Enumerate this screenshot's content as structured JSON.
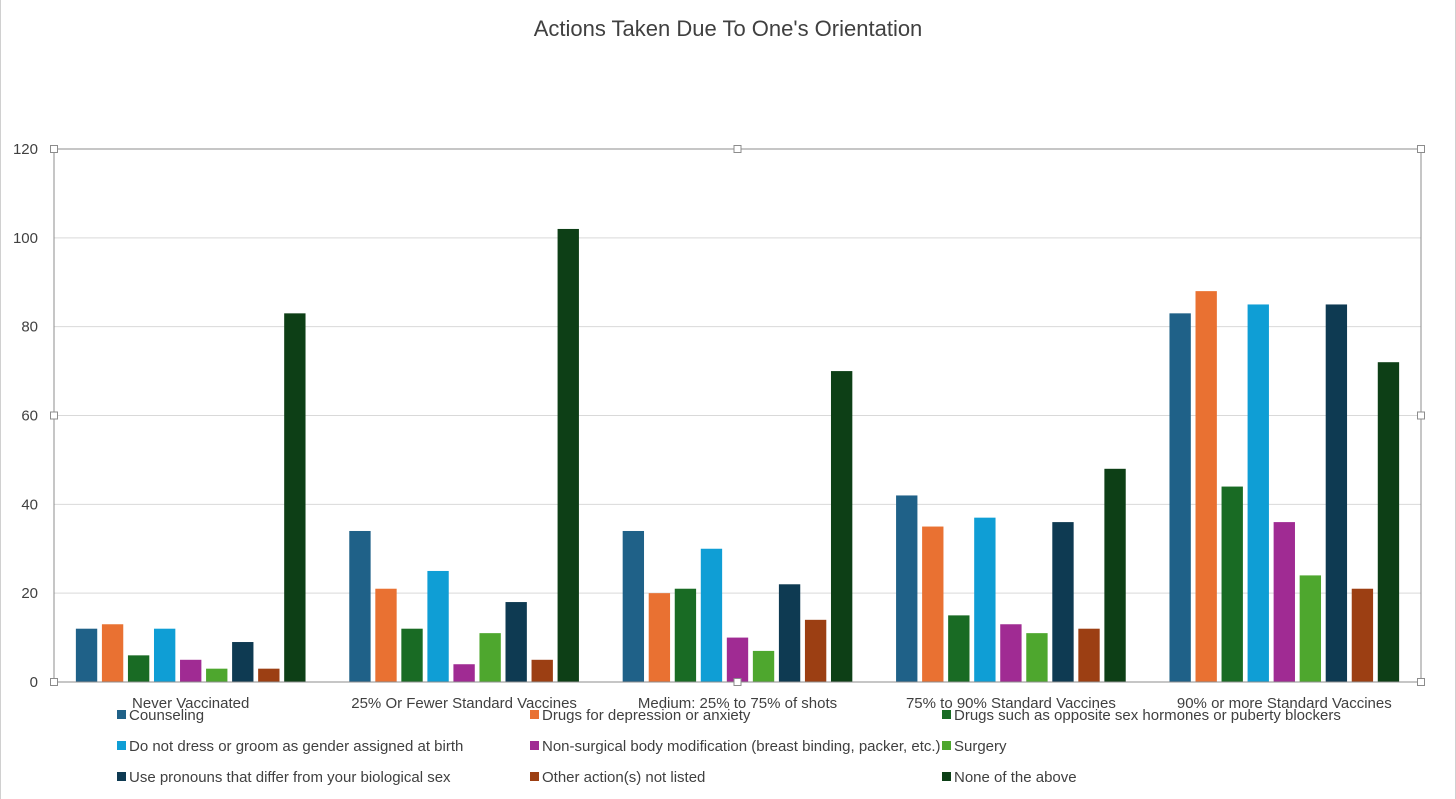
{
  "chart_data": {
    "type": "bar",
    "title": "Actions Taken Due To One's Orientation",
    "xlabel": "",
    "ylabel": "",
    "ylim": [
      0,
      120
    ],
    "yticks": [
      0,
      20,
      40,
      60,
      80,
      100,
      120
    ],
    "grid": true,
    "legend_position": "bottom",
    "categories": [
      "Never Vaccinated",
      "25% Or Fewer Standard Vaccines",
      "Medium: 25% to 75% of shots",
      "75% to 90% Standard Vaccines",
      "90% or more Standard Vaccines"
    ],
    "series": [
      {
        "name": "Counseling",
        "color": "#1f6188",
        "values": [
          12,
          34,
          34,
          42,
          83
        ]
      },
      {
        "name": "Drugs for depression or anxiety",
        "color": "#e97132",
        "values": [
          13,
          21,
          20,
          35,
          88
        ]
      },
      {
        "name": "Drugs such as opposite sex hormones or puberty blockers",
        "color": "#196b24",
        "values": [
          6,
          12,
          21,
          15,
          44
        ]
      },
      {
        "name": "Do not dress or groom as gender assigned at birth",
        "color": "#0f9ed5",
        "values": [
          12,
          25,
          30,
          37,
          85
        ]
      },
      {
        "name": "Non-surgical body modification (breast binding, packer, etc.)",
        "color": "#a02b93",
        "values": [
          5,
          4,
          10,
          13,
          36
        ]
      },
      {
        "name": "Surgery",
        "color": "#4ea72e",
        "values": [
          3,
          11,
          7,
          11,
          24
        ]
      },
      {
        "name": "Use pronouns that differ from your biological sex",
        "color": "#0e3a52",
        "values": [
          9,
          18,
          22,
          36,
          85
        ]
      },
      {
        "name": "Other action(s) not listed",
        "color": "#9c3f13",
        "values": [
          3,
          5,
          14,
          12,
          21
        ]
      },
      {
        "name": "None of the above",
        "color": "#0d3f16",
        "values": [
          83,
          102,
          70,
          48,
          72
        ]
      }
    ]
  }
}
